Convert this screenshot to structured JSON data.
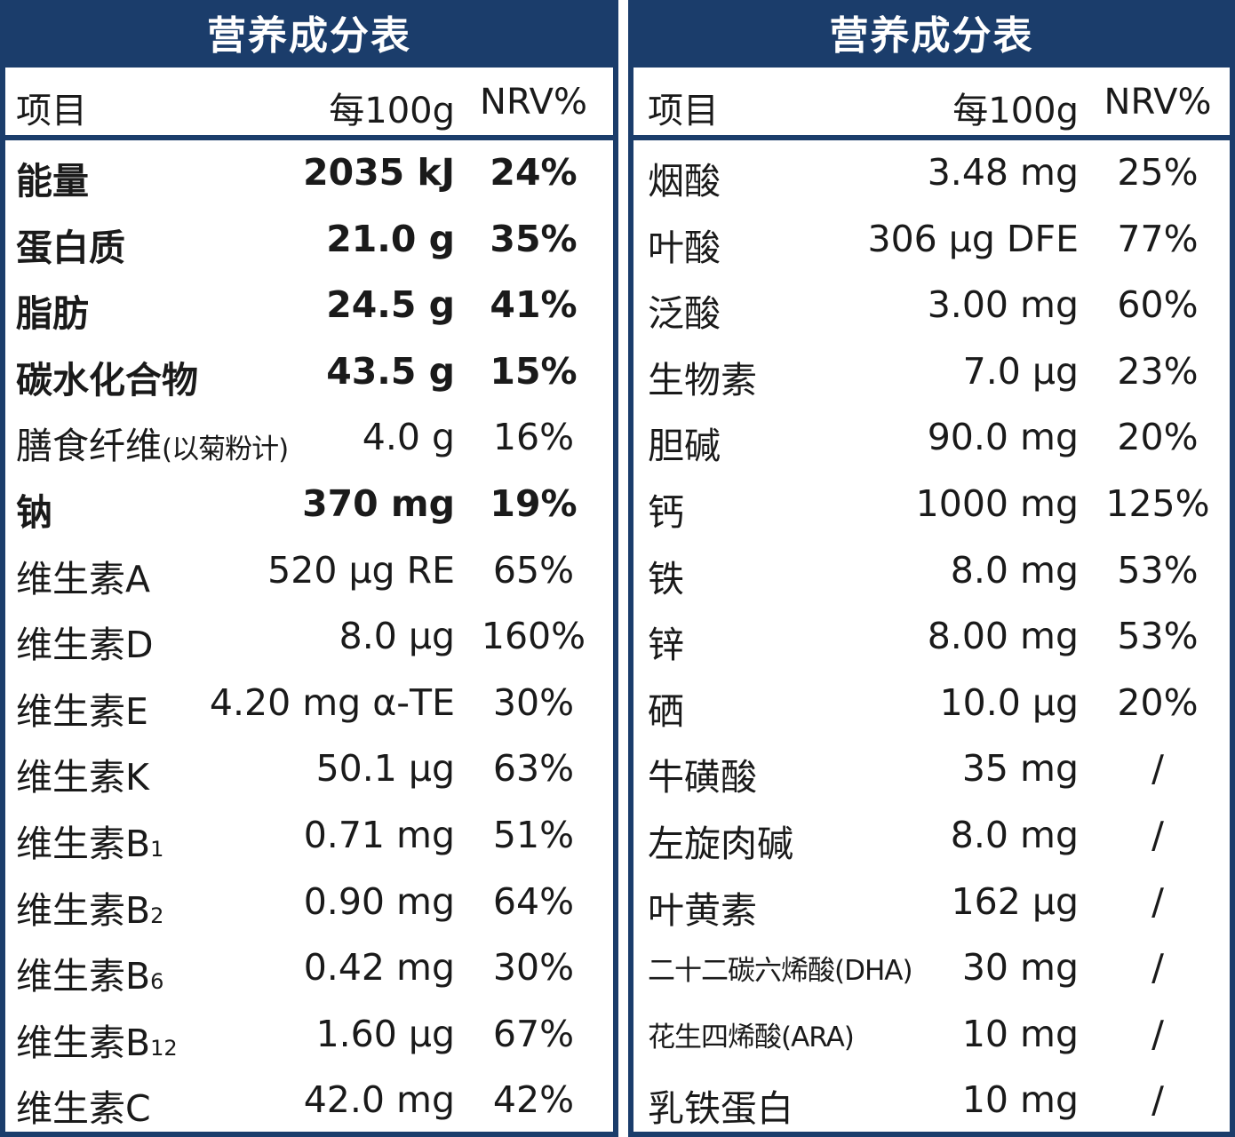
{
  "left": {
    "title": "营养成分表",
    "header": {
      "item": "项目",
      "amount": "每100g",
      "nrv": "NRV%"
    },
    "rows": [
      {
        "name": "能量",
        "amount": "2035 kJ",
        "nrv": "24%",
        "bold": true
      },
      {
        "name": "蛋白质",
        "amount": "21.0 g",
        "nrv": "35%",
        "bold": true
      },
      {
        "name": "脂肪",
        "amount": "24.5 g",
        "nrv": "41%",
        "bold": true
      },
      {
        "name": "碳水化合物",
        "amount": "43.5 g",
        "nrv": "15%",
        "bold": true
      },
      {
        "name": "膳食纤维",
        "note": "(以菊粉计)",
        "amount": "4.0 g",
        "nrv": "16%"
      },
      {
        "name": "钠",
        "amount": "370 mg",
        "nrv": "19%",
        "bold": true
      },
      {
        "name": "维生素A",
        "amount": "520 μg RE",
        "nrv": "65%"
      },
      {
        "name": "维生素D",
        "amount": "8.0 μg",
        "nrv": "160%"
      },
      {
        "name": "维生素E",
        "amount": "4.20 mg α-TE",
        "nrv": "30%"
      },
      {
        "name": "维生素K",
        "amount": "50.1 μg",
        "nrv": "63%"
      },
      {
        "name": "维生素B",
        "sub": "1",
        "amount": "0.71 mg",
        "nrv": "51%"
      },
      {
        "name": "维生素B",
        "sub": "2",
        "amount": "0.90 mg",
        "nrv": "64%"
      },
      {
        "name": "维生素B",
        "sub": "6",
        "amount": "0.42 mg",
        "nrv": "30%"
      },
      {
        "name": "维生素B",
        "sub": "12",
        "amount": "1.60 μg",
        "nrv": "67%"
      },
      {
        "name": "维生素C",
        "amount": "42.0 mg",
        "nrv": "42%"
      }
    ]
  },
  "right": {
    "title": "营养成分表",
    "header": {
      "item": "项目",
      "amount": "每100g",
      "nrv": "NRV%"
    },
    "rows": [
      {
        "name": "烟酸",
        "amount": "3.48 mg",
        "nrv": "25%"
      },
      {
        "name": "叶酸",
        "amount": "306 μg DFE",
        "nrv": "77%"
      },
      {
        "name": "泛酸",
        "amount": "3.00 mg",
        "nrv": "60%"
      },
      {
        "name": "生物素",
        "amount": "7.0 μg",
        "nrv": "23%"
      },
      {
        "name": "胆碱",
        "amount": "90.0 mg",
        "nrv": "20%"
      },
      {
        "name": "钙",
        "amount": "1000 mg",
        "nrv": "125%"
      },
      {
        "name": "铁",
        "amount": "8.0 mg",
        "nrv": "53%"
      },
      {
        "name": "锌",
        "amount": "8.00 mg",
        "nrv": "53%"
      },
      {
        "name": "硒",
        "amount": "10.0 μg",
        "nrv": "20%"
      },
      {
        "name": "牛磺酸",
        "amount": "35 mg",
        "nrv": "/"
      },
      {
        "name": "左旋肉碱",
        "amount": "8.0 mg",
        "nrv": "/"
      },
      {
        "name": "叶黄素",
        "amount": "162 μg",
        "nrv": "/"
      },
      {
        "name": "二十二碳六烯酸(DHA)",
        "amount": "30 mg",
        "nrv": "/",
        "small": true
      },
      {
        "name": "花生四烯酸(ARA)",
        "amount": "10 mg",
        "nrv": "/",
        "small": true
      },
      {
        "name": "乳铁蛋白",
        "amount": "10 mg",
        "nrv": "/"
      }
    ]
  }
}
